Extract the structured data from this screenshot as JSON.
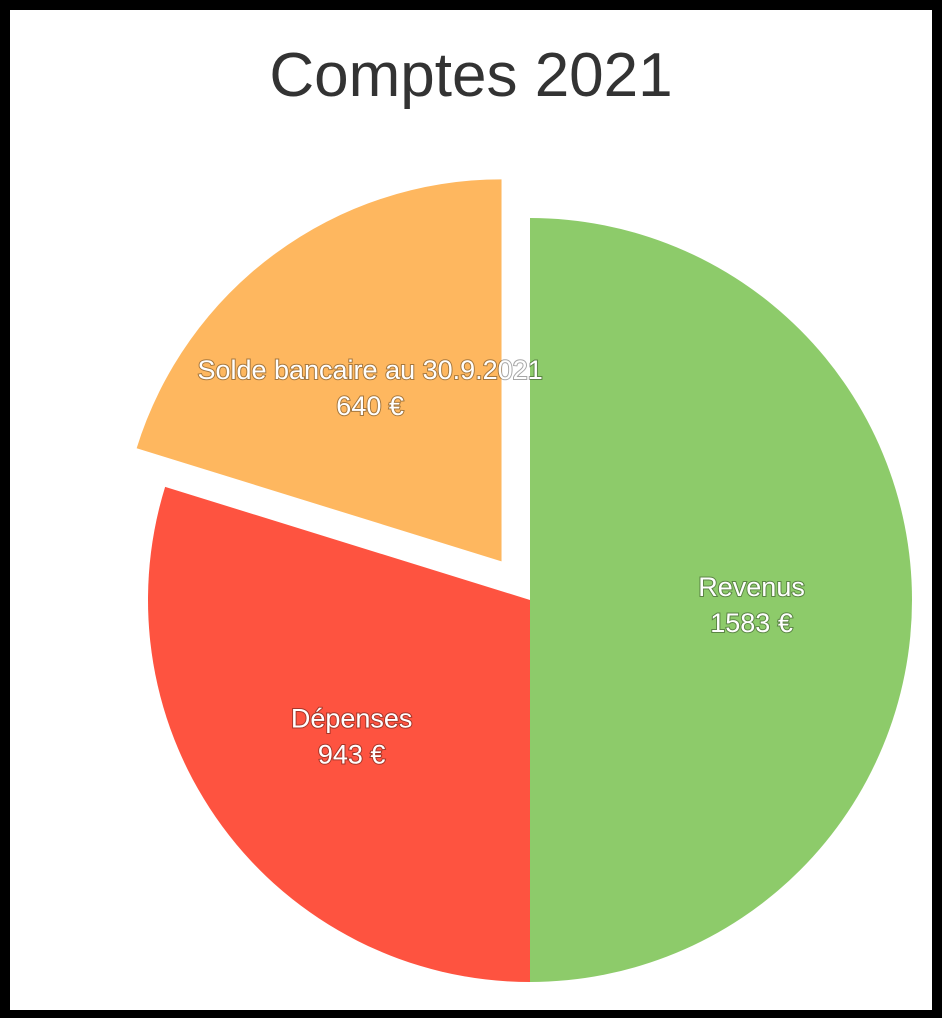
{
  "chart_data": {
    "type": "pie",
    "title": "Comptes 2021",
    "slices": [
      {
        "name": "Revenus",
        "value": 1583,
        "value_label": "1583 €",
        "color": "#8dcb6a",
        "exploded": false
      },
      {
        "name": "Dépenses",
        "value": 943,
        "value_label": "943 €",
        "color": "#fe5340",
        "exploded": false
      },
      {
        "name": "Solde bancaire au 30.9.2021",
        "value": 640,
        "value_label": "640 €",
        "color": "#feb75f",
        "exploded": true
      }
    ]
  }
}
